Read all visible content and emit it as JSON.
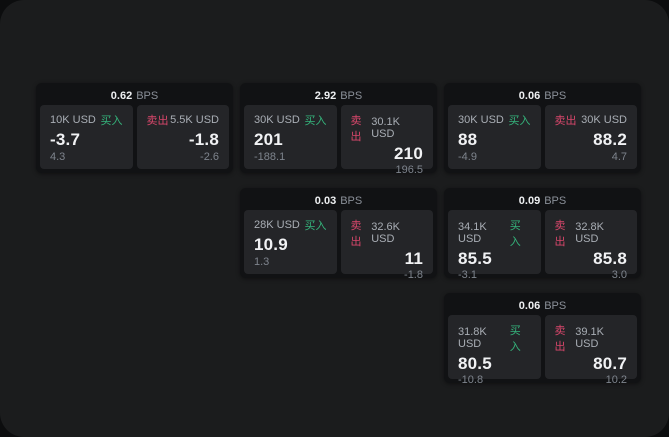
{
  "labels": {
    "bps_unit": "BPS",
    "buy": "买入",
    "sell": "卖出"
  },
  "colors": {
    "page_background": "#1b1c1d",
    "outer_background": "#0c0d0e",
    "card_background": "#111214",
    "panel_background": "#242528",
    "buy_green": "#35b57c",
    "sell_red": "#d9476b"
  },
  "cards": [
    {
      "bps": "0.62",
      "buy_amount": "10K USD",
      "buy_main": "-3.7",
      "buy_sub": "4.3",
      "sell_amount": "5.5K USD",
      "sell_main": "-1.8",
      "sell_sub": "-2.6"
    },
    {
      "bps": "2.92",
      "buy_amount": "30K USD",
      "buy_main": "201",
      "buy_sub": "-188.1",
      "sell_amount": "30.1K USD",
      "sell_main": "210",
      "sell_sub": "196.5"
    },
    {
      "bps": "0.06",
      "buy_amount": "30K USD",
      "buy_main": "88",
      "buy_sub": "-4.9",
      "sell_amount": "30K USD",
      "sell_main": "88.2",
      "sell_sub": "4.7"
    },
    {
      "bps": "0.03",
      "buy_amount": "28K USD",
      "buy_main": "10.9",
      "buy_sub": "1.3",
      "sell_amount": "32.6K USD",
      "sell_main": "11",
      "sell_sub": "-1.8"
    },
    {
      "bps": "0.09",
      "buy_amount": "34.1K USD",
      "buy_main": "85.5",
      "buy_sub": "-3.1",
      "sell_amount": "32.8K USD",
      "sell_main": "85.8",
      "sell_sub": "3.0"
    },
    {
      "bps": "0.06",
      "buy_amount": "31.8K USD",
      "buy_main": "80.5",
      "buy_sub": "-10.8",
      "sell_amount": "39.1K USD",
      "sell_main": "80.7",
      "sell_sub": "10.2"
    }
  ]
}
